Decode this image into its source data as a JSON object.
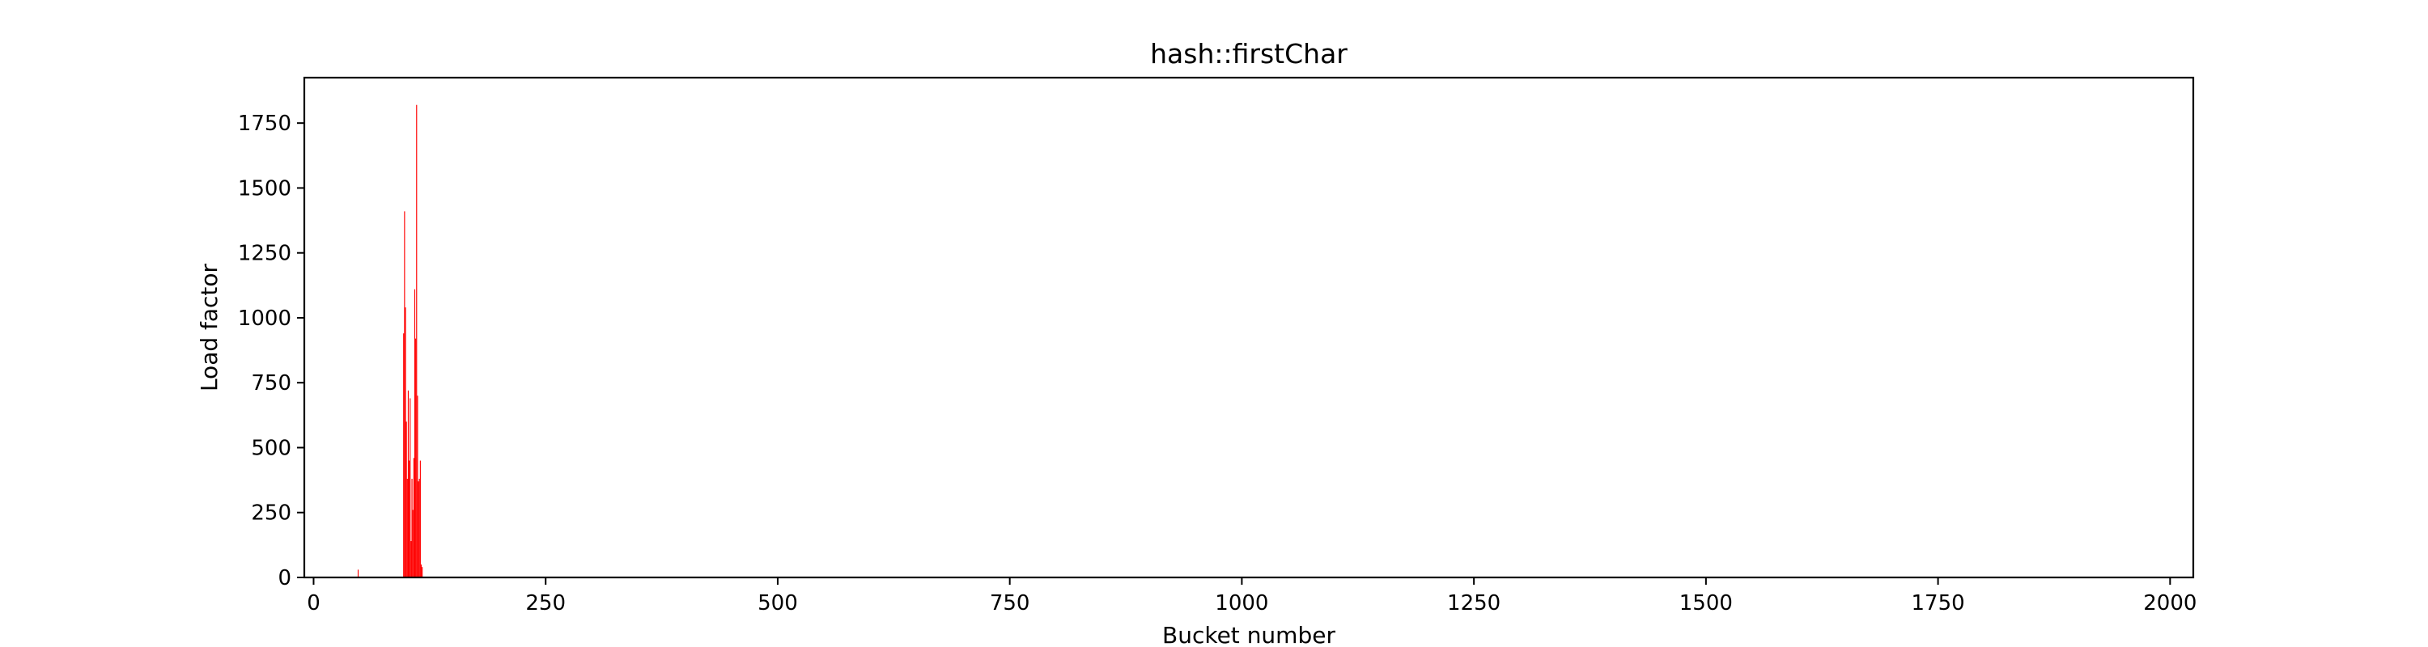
{
  "chart_data": {
    "type": "bar",
    "title": "hash::firstChar",
    "xlabel": "Bucket number",
    "ylabel": "Load factor",
    "xlim": [
      -10,
      2025
    ],
    "ylim": [
      0,
      1925
    ],
    "xticks": [
      0,
      250,
      500,
      750,
      1000,
      1250,
      1500,
      1750,
      2000
    ],
    "yticks": [
      0,
      250,
      500,
      750,
      1000,
      1250,
      1500,
      1750
    ],
    "grid": false,
    "legend": "none",
    "bar_color": "#ff0000",
    "bars": [
      {
        "x": 48,
        "y": 30
      },
      {
        "x": 97,
        "y": 940
      },
      {
        "x": 98,
        "y": 1410
      },
      {
        "x": 99,
        "y": 1040
      },
      {
        "x": 100,
        "y": 600
      },
      {
        "x": 101,
        "y": 380
      },
      {
        "x": 102,
        "y": 720
      },
      {
        "x": 103,
        "y": 450
      },
      {
        "x": 104,
        "y": 690
      },
      {
        "x": 105,
        "y": 140
      },
      {
        "x": 106,
        "y": 380
      },
      {
        "x": 107,
        "y": 260
      },
      {
        "x": 108,
        "y": 460
      },
      {
        "x": 109,
        "y": 1110
      },
      {
        "x": 110,
        "y": 920
      },
      {
        "x": 111,
        "y": 1820
      },
      {
        "x": 112,
        "y": 700
      },
      {
        "x": 113,
        "y": 370
      },
      {
        "x": 114,
        "y": 380
      },
      {
        "x": 115,
        "y": 450
      },
      {
        "x": 116,
        "y": 50
      },
      {
        "x": 117,
        "y": 40
      }
    ]
  }
}
